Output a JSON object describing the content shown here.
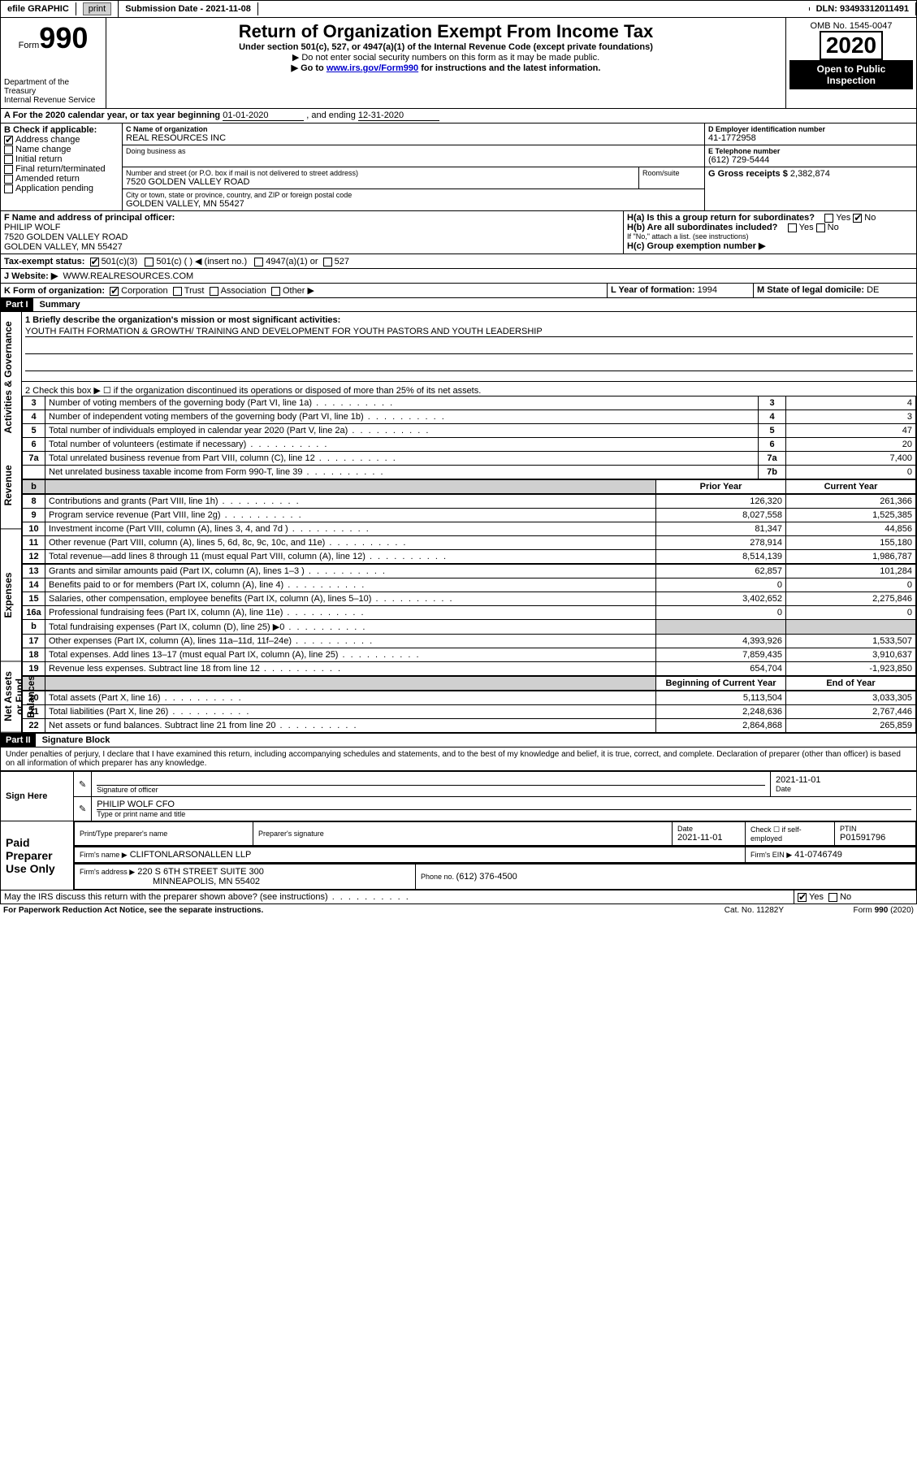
{
  "topbar": {
    "efile": "efile GRAPHIC",
    "print": "print",
    "subdate_label": "Submission Date - ",
    "subdate": "2021-11-08",
    "dln_label": "DLN: ",
    "dln": "93493312011491"
  },
  "header": {
    "form": "Form",
    "form_no": "990",
    "dept1": "Department of the",
    "dept2": "Treasury",
    "dept3": "Internal Revenue Service",
    "title": "Return of Organization Exempt From Income Tax",
    "subtitle": "Under section 501(c), 527, or 4947(a)(1) of the Internal Revenue Code (except private foundations)",
    "note1": "▶ Do not enter social security numbers on this form as it may be made public.",
    "note2_pre": "▶ Go to ",
    "note2_link": "www.irs.gov/Form990",
    "note2_post": " for instructions and the latest information.",
    "omb": "OMB No. 1545-0047",
    "year": "2020",
    "open": "Open to Public Inspection"
  },
  "lineA": {
    "text": "A For the 2020 calendar year, or tax year beginning ",
    "begin": "01-01-2020",
    "mid": " , and ending ",
    "end": "12-31-2020"
  },
  "B": {
    "label": "B Check if applicable:",
    "addr": "Address change",
    "name": "Name change",
    "initial": "Initial return",
    "final": "Final return/terminated",
    "amended": "Amended return",
    "app": "Application pending"
  },
  "C": {
    "label": "C Name of organization",
    "name": "REAL RESOURCES INC",
    "dba": "Doing business as",
    "street_label": "Number and street (or P.O. box if mail is not delivered to street address)",
    "room_label": "Room/suite",
    "street": "7520 GOLDEN VALLEY ROAD",
    "city_label": "City or town, state or province, country, and ZIP or foreign postal code",
    "city": "GOLDEN VALLEY, MN  55427"
  },
  "D": {
    "label": "D Employer identification number",
    "value": "41-1772958"
  },
  "E": {
    "label": "E Telephone number",
    "value": "(612) 729-5444"
  },
  "G": {
    "label": "G Gross receipts $ ",
    "value": "2,382,874"
  },
  "F": {
    "label": "F  Name and address of principal officer:",
    "name": "PHILIP WOLF",
    "addr1": "7520 GOLDEN VALLEY ROAD",
    "addr2": "GOLDEN VALLEY, MN  55427"
  },
  "H": {
    "a": "H(a)  Is this a group return for subordinates?",
    "b": "H(b)  Are all subordinates included?",
    "note": "If \"No,\" attach a list. (see instructions)",
    "c": "H(c)  Group exemption number ▶",
    "yes": "Yes",
    "no": "No"
  },
  "I": {
    "label": "Tax-exempt status:",
    "c3": "501(c)(3)",
    "c": "501(c) (   ) ◀ (insert no.)",
    "a1": "4947(a)(1) or",
    "s527": "527"
  },
  "J": {
    "label": "J   Website: ▶",
    "value": "WWW.REALRESOURCES.COM"
  },
  "K": {
    "label": "K Form of organization:",
    "corp": "Corporation",
    "trust": "Trust",
    "assoc": "Association",
    "other": "Other ▶"
  },
  "L": {
    "label": "L Year of formation: ",
    "value": "1994"
  },
  "M": {
    "label": "M State of legal domicile: ",
    "value": "DE"
  },
  "partI": {
    "header": "Part I",
    "title": "Summary"
  },
  "summary": {
    "q1": "1  Briefly describe the organization's mission or most significant activities:",
    "q1_ans": "YOUTH FAITH FORMATION & GROWTH/ TRAINING AND DEVELOPMENT FOR YOUTH PASTORS AND YOUTH LEADERSHIP",
    "q2": "2   Check this box ▶ ☐  if the organization discontinued its operations or disposed of more than 25% of its net assets.",
    "rows_gov": [
      {
        "n": "3",
        "t": "Number of voting members of the governing body (Part VI, line 1a)",
        "box": "3",
        "v": "4"
      },
      {
        "n": "4",
        "t": "Number of independent voting members of the governing body (Part VI, line 1b)",
        "box": "4",
        "v": "3"
      },
      {
        "n": "5",
        "t": "Total number of individuals employed in calendar year 2020 (Part V, line 2a)",
        "box": "5",
        "v": "47"
      },
      {
        "n": "6",
        "t": "Total number of volunteers (estimate if necessary)",
        "box": "6",
        "v": "20"
      },
      {
        "n": "7a",
        "t": "Total unrelated business revenue from Part VIII, column (C), line 12",
        "box": "7a",
        "v": "7,400"
      },
      {
        "n": "",
        "t": "Net unrelated business taxable income from Form 990-T, line 39",
        "box": "7b",
        "v": "0"
      }
    ],
    "col_prior": "Prior Year",
    "col_current": "Current Year",
    "rows_rev": [
      {
        "n": "8",
        "t": "Contributions and grants (Part VIII, line 1h)",
        "p": "126,320",
        "c": "261,366"
      },
      {
        "n": "9",
        "t": "Program service revenue (Part VIII, line 2g)",
        "p": "8,027,558",
        "c": "1,525,385"
      },
      {
        "n": "10",
        "t": "Investment income (Part VIII, column (A), lines 3, 4, and 7d )",
        "p": "81,347",
        "c": "44,856"
      },
      {
        "n": "11",
        "t": "Other revenue (Part VIII, column (A), lines 5, 6d, 8c, 9c, 10c, and 11e)",
        "p": "278,914",
        "c": "155,180"
      },
      {
        "n": "12",
        "t": "Total revenue—add lines 8 through 11 (must equal Part VIII, column (A), line 12)",
        "p": "8,514,139",
        "c": "1,986,787"
      }
    ],
    "rows_exp": [
      {
        "n": "13",
        "t": "Grants and similar amounts paid (Part IX, column (A), lines 1–3 )",
        "p": "62,857",
        "c": "101,284"
      },
      {
        "n": "14",
        "t": "Benefits paid to or for members (Part IX, column (A), line 4)",
        "p": "0",
        "c": "0"
      },
      {
        "n": "15",
        "t": "Salaries, other compensation, employee benefits (Part IX, column (A), lines 5–10)",
        "p": "3,402,652",
        "c": "2,275,846"
      },
      {
        "n": "16a",
        "t": "Professional fundraising fees (Part IX, column (A), line 11e)",
        "p": "0",
        "c": "0"
      },
      {
        "n": "b",
        "t": "Total fundraising expenses (Part IX, column (D), line 25) ▶0",
        "p": "",
        "c": "",
        "shade": true
      },
      {
        "n": "17",
        "t": "Other expenses (Part IX, column (A), lines 11a–11d, 11f–24e)",
        "p": "4,393,926",
        "c": "1,533,507"
      },
      {
        "n": "18",
        "t": "Total expenses. Add lines 13–17 (must equal Part IX, column (A), line 25)",
        "p": "7,859,435",
        "c": "3,910,637"
      },
      {
        "n": "19",
        "t": "Revenue less expenses. Subtract line 18 from line 12",
        "p": "654,704",
        "c": "-1,923,850"
      }
    ],
    "col_boy": "Beginning of Current Year",
    "col_eoy": "End of Year",
    "rows_net": [
      {
        "n": "20",
        "t": "Total assets (Part X, line 16)",
        "p": "5,113,504",
        "c": "3,033,305"
      },
      {
        "n": "21",
        "t": "Total liabilities (Part X, line 26)",
        "p": "2,248,636",
        "c": "2,767,446"
      },
      {
        "n": "22",
        "t": "Net assets or fund balances. Subtract line 21 from line 20",
        "p": "2,864,868",
        "c": "265,859"
      }
    ]
  },
  "side_labels": {
    "gov": "Activities & Governance",
    "rev": "Revenue",
    "exp": "Expenses",
    "net": "Net Assets or Fund Balances"
  },
  "partII": {
    "header": "Part II",
    "title": "Signature Block"
  },
  "sig": {
    "decl": "Under penalties of perjury, I declare that I have examined this return, including accompanying schedules and statements, and to the best of my knowledge and belief, it is true, correct, and complete. Declaration of preparer (other than officer) is based on all information of which preparer has any knowledge.",
    "sign_here": "Sign Here",
    "sig_officer": "Signature of officer",
    "date": "Date",
    "date_val": "2021-11-01",
    "name": "PHILIP WOLF  CFO",
    "name_label": "Type or print name and title",
    "paid": "Paid Preparer Use Only",
    "prep_name_label": "Print/Type preparer's name",
    "prep_sig_label": "Preparer's signature",
    "prep_date": "2021-11-01",
    "self": "Check ☐ if self-employed",
    "ptin_label": "PTIN",
    "ptin": "P01591796",
    "firm_label": "Firm's name    ▶",
    "firm": "CLIFTONLARSONALLEN LLP",
    "ein_label": "Firm's EIN ▶",
    "ein": "41-0746749",
    "addr_label": "Firm's address ▶",
    "addr1": "220 S 6TH STREET SUITE 300",
    "addr2": "MINNEAPOLIS, MN  55402",
    "phone_label": "Phone no. ",
    "phone": "(612) 376-4500",
    "may": "May the IRS discuss this return with the preparer shown above? (see instructions)"
  },
  "footer": {
    "left": "For Paperwork Reduction Act Notice, see the separate instructions.",
    "mid": "Cat. No. 11282Y",
    "right": "Form 990 (2020)"
  },
  "colors": {
    "black": "#000000",
    "link": "#0000cc",
    "grey": "#d0d0d0"
  }
}
